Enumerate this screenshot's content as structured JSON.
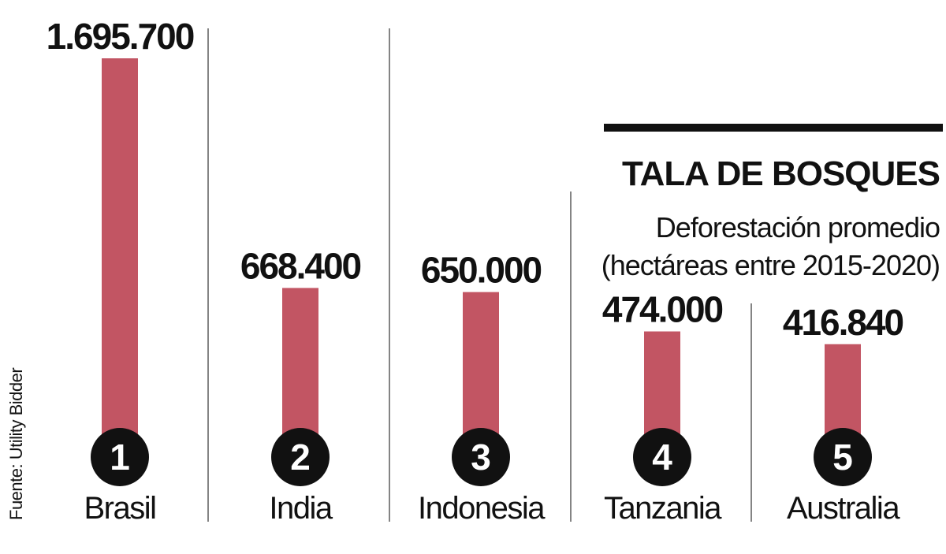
{
  "title": "TALA DE BOSQUES",
  "subtitle_line1": "Deforestación promedio",
  "subtitle_line2": "(hectáreas entre 2015-2020)",
  "source": "Fuente: Utility Bidder",
  "colors": {
    "bar": "#c25563",
    "badge": "#111111",
    "badge_text": "#ffffff",
    "divider": "#333333"
  },
  "chart_data": {
    "type": "bar",
    "title": "TALA DE BOSQUES",
    "subtitle": "Deforestación promedio (hectáreas entre 2015-2020)",
    "categories": [
      "Brasil",
      "India",
      "Indonesia",
      "Tanzania",
      "Australia"
    ],
    "ranks": [
      "1",
      "2",
      "3",
      "4",
      "5"
    ],
    "values": [
      1695700,
      668400,
      650000,
      474000,
      416840
    ],
    "value_labels": [
      "1.695.700",
      "668.400",
      "650.000",
      "474.000",
      "416.840"
    ],
    "xlabel": "",
    "ylabel": "",
    "ylim": [
      0,
      1695700
    ],
    "grid": false,
    "legend": "none"
  }
}
